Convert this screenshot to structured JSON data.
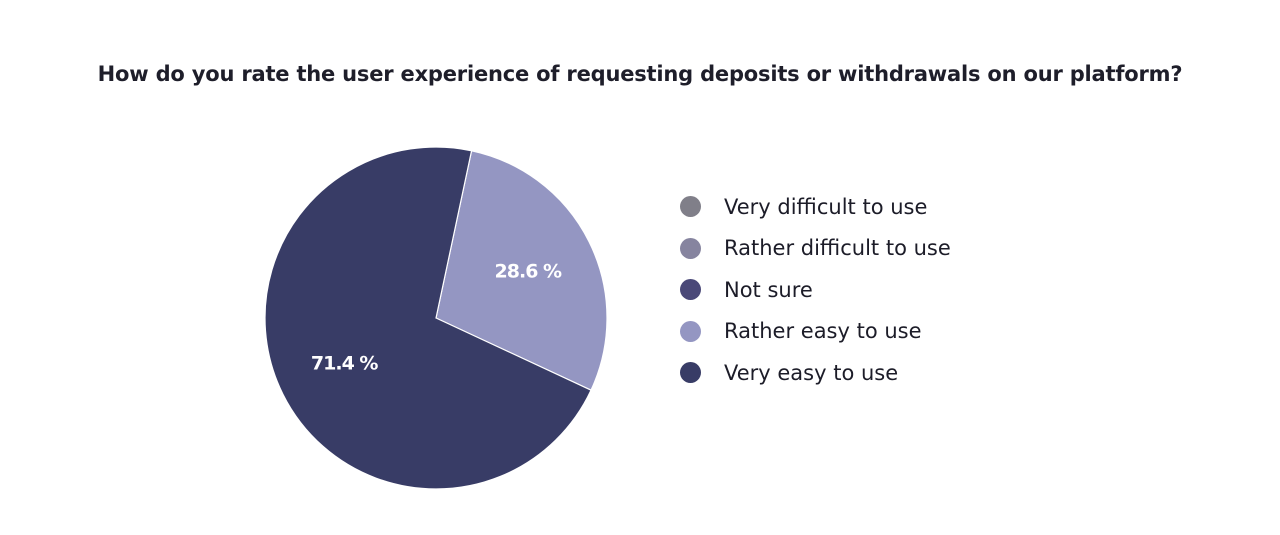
{
  "chart_data": {
    "type": "pie",
    "title": "How do you rate the user experience of requesting deposits or withdrawals on our platform?",
    "categories": [
      "Very difficult to use",
      "Rather difficult to use",
      "Not sure",
      "Rather easy to use",
      "Very easy to use"
    ],
    "values": [
      0,
      0,
      0,
      28.6,
      71.4
    ],
    "value_labels": [
      "",
      "",
      "",
      "28.6 %",
      "71.4 %"
    ],
    "colors": [
      "#807f89",
      "#86849f",
      "#4a4878",
      "#9496c2",
      "#383c66"
    ],
    "legend_position": "right"
  }
}
